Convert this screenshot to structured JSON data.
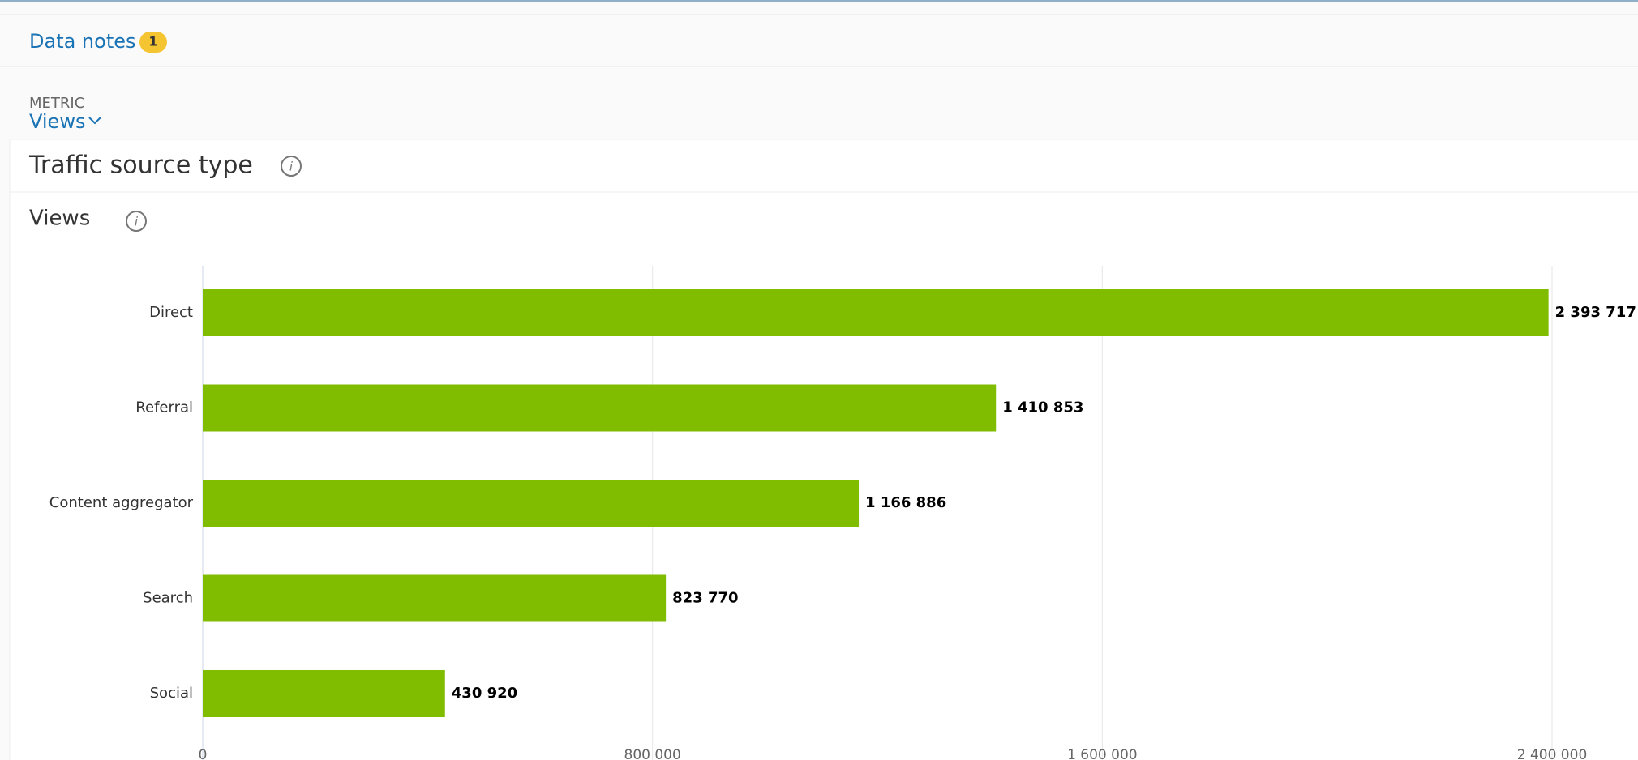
{
  "header": {
    "data_notes": "Data notes",
    "notes_count": "1",
    "metric_label": "METRIC",
    "metric_value": "Views"
  },
  "card": {
    "title": "Traffic source type",
    "subtitle": "Views"
  },
  "chart_data": {
    "type": "bar",
    "orientation": "horizontal",
    "categories": [
      "Direct",
      "Referral",
      "Content aggregator",
      "Search",
      "Social"
    ],
    "values": [
      2393717,
      1410853,
      1166886,
      823770,
      430920
    ],
    "value_labels": [
      "2 393 717",
      "1 410 853",
      "1 166 886",
      "823 770",
      "430 920"
    ],
    "color": "#80bd01",
    "xlim": [
      0,
      2400000
    ],
    "xticks": [
      0,
      {
        "value": 800000,
        "label": "800 000"
      },
      {
        "value": 1600000,
        "label": "1 600 000"
      },
      {
        "value": 2400000,
        "label": "2 400 000"
      }
    ],
    "grid": true
  }
}
